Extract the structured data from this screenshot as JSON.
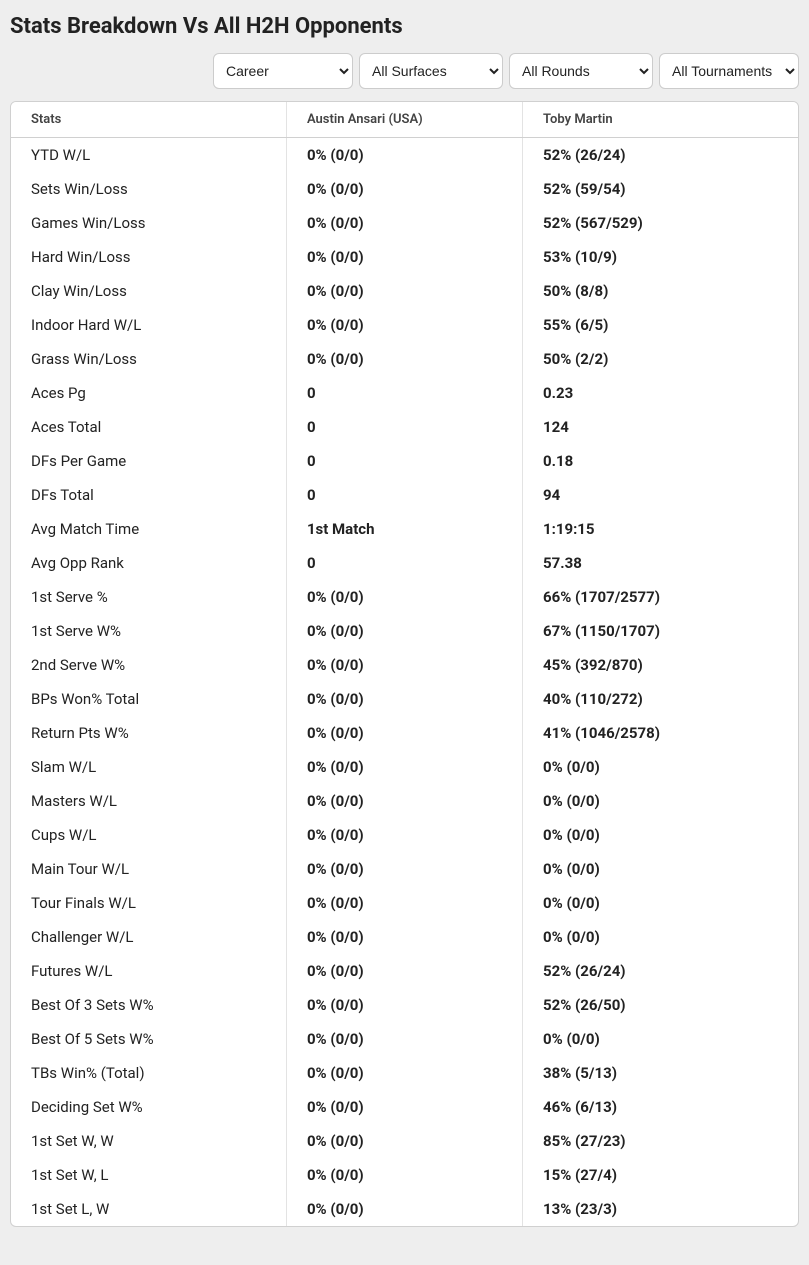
{
  "title": "Stats Breakdown Vs All H2H Opponents",
  "filters": {
    "career": "Career",
    "surfaces": "All Surfaces",
    "rounds": "All Rounds",
    "tournaments": "All Tournaments"
  },
  "columns": {
    "stats": "Stats",
    "player1": "Austin Ansari (USA)",
    "player2": "Toby Martin"
  },
  "rows": [
    {
      "label": "YTD W/L",
      "p1": "0% (0/0)",
      "p2": "52% (26/24)"
    },
    {
      "label": "Sets Win/Loss",
      "p1": "0% (0/0)",
      "p2": "52% (59/54)"
    },
    {
      "label": "Games Win/Loss",
      "p1": "0% (0/0)",
      "p2": "52% (567/529)"
    },
    {
      "label": "Hard Win/Loss",
      "p1": "0% (0/0)",
      "p2": "53% (10/9)"
    },
    {
      "label": "Clay Win/Loss",
      "p1": "0% (0/0)",
      "p2": "50% (8/8)"
    },
    {
      "label": "Indoor Hard W/L",
      "p1": "0% (0/0)",
      "p2": "55% (6/5)"
    },
    {
      "label": "Grass Win/Loss",
      "p1": "0% (0/0)",
      "p2": "50% (2/2)"
    },
    {
      "label": "Aces Pg",
      "p1": "0",
      "p2": "0.23"
    },
    {
      "label": "Aces Total",
      "p1": "0",
      "p2": "124"
    },
    {
      "label": "DFs Per Game",
      "p1": "0",
      "p2": "0.18"
    },
    {
      "label": "DFs Total",
      "p1": "0",
      "p2": "94"
    },
    {
      "label": "Avg Match Time",
      "p1": "1st Match",
      "p2": "1:19:15"
    },
    {
      "label": "Avg Opp Rank",
      "p1": "0",
      "p2": "57.38"
    },
    {
      "label": "1st Serve %",
      "p1": "0% (0/0)",
      "p2": "66% (1707/2577)"
    },
    {
      "label": "1st Serve W%",
      "p1": "0% (0/0)",
      "p2": "67% (1150/1707)"
    },
    {
      "label": "2nd Serve W%",
      "p1": "0% (0/0)",
      "p2": "45% (392/870)"
    },
    {
      "label": "BPs Won% Total",
      "p1": "0% (0/0)",
      "p2": "40% (110/272)"
    },
    {
      "label": "Return Pts W%",
      "p1": "0% (0/0)",
      "p2": "41% (1046/2578)"
    },
    {
      "label": "Slam W/L",
      "p1": "0% (0/0)",
      "p2": "0% (0/0)"
    },
    {
      "label": "Masters W/L",
      "p1": "0% (0/0)",
      "p2": "0% (0/0)"
    },
    {
      "label": "Cups W/L",
      "p1": "0% (0/0)",
      "p2": "0% (0/0)"
    },
    {
      "label": "Main Tour W/L",
      "p1": "0% (0/0)",
      "p2": "0% (0/0)"
    },
    {
      "label": "Tour Finals W/L",
      "p1": "0% (0/0)",
      "p2": "0% (0/0)"
    },
    {
      "label": "Challenger W/L",
      "p1": "0% (0/0)",
      "p2": "0% (0/0)"
    },
    {
      "label": "Futures W/L",
      "p1": "0% (0/0)",
      "p2": "52% (26/24)"
    },
    {
      "label": "Best Of 3 Sets W%",
      "p1": "0% (0/0)",
      "p2": "52% (26/50)"
    },
    {
      "label": "Best Of 5 Sets W%",
      "p1": "0% (0/0)",
      "p2": "0% (0/0)"
    },
    {
      "label": "TBs Win% (Total)",
      "p1": "0% (0/0)",
      "p2": "38% (5/13)"
    },
    {
      "label": "Deciding Set W%",
      "p1": "0% (0/0)",
      "p2": "46% (6/13)"
    },
    {
      "label": "1st Set W, W",
      "p1": "0% (0/0)",
      "p2": "85% (27/23)"
    },
    {
      "label": "1st Set W, L",
      "p1": "0% (0/0)",
      "p2": "15% (27/4)"
    },
    {
      "label": "1st Set L, W",
      "p1": "0% (0/0)",
      "p2": "13% (23/3)"
    }
  ],
  "colors": {
    "page_bg": "#eeeeee",
    "card_bg": "#ffffff",
    "border": "#d0d0d0",
    "cell_border": "#e3e3e3",
    "text": "#222222",
    "header_text": "#444444"
  }
}
